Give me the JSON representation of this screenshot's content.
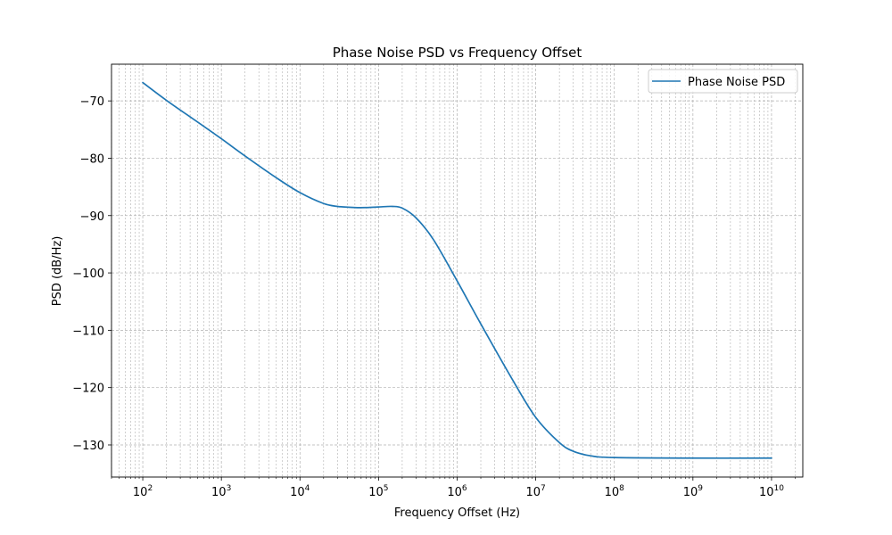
{
  "chart_data": {
    "type": "line",
    "title": "Phase Noise PSD vs Frequency Offset",
    "xlabel": "Frequency Offset (Hz)",
    "ylabel": "PSD (dB/Hz)",
    "xscale": "log",
    "xlim": [
      40,
      25000000000
    ],
    "ylim": [
      -135.6,
      -63.6
    ],
    "grid": true,
    "legend_position": "upper right",
    "x_ticks": [
      {
        "base": "10",
        "exp": "2",
        "value": 100
      },
      {
        "base": "10",
        "exp": "3",
        "value": 1000
      },
      {
        "base": "10",
        "exp": "4",
        "value": 10000
      },
      {
        "base": "10",
        "exp": "5",
        "value": 100000
      },
      {
        "base": "10",
        "exp": "6",
        "value": 1000000
      },
      {
        "base": "10",
        "exp": "7",
        "value": 10000000
      },
      {
        "base": "10",
        "exp": "8",
        "value": 100000000
      },
      {
        "base": "10",
        "exp": "9",
        "value": 1000000000
      },
      {
        "base": "10",
        "exp": "10",
        "value": 10000000000
      }
    ],
    "y_ticks": [
      {
        "label": "−70",
        "value": -70
      },
      {
        "label": "−80",
        "value": -80
      },
      {
        "label": "−90",
        "value": -90
      },
      {
        "label": "−100",
        "value": -100
      },
      {
        "label": "−110",
        "value": -110
      },
      {
        "label": "−120",
        "value": -120
      },
      {
        "label": "−130",
        "value": -130
      }
    ],
    "series": [
      {
        "name": "Phase Noise PSD",
        "color": "#1f77b4",
        "x": [
          100,
          200,
          500,
          1000,
          2000,
          5000,
          10000,
          20000,
          30000,
          50000,
          70000,
          100000,
          150000,
          200000,
          300000,
          500000,
          1000000,
          2000000,
          5000000,
          10000000,
          20000000,
          30000000,
          50000000,
          100000000,
          1000000000,
          10000000000
        ],
        "y": [
          -66.8,
          -69.9,
          -73.7,
          -76.6,
          -79.6,
          -83.4,
          -86.0,
          -87.9,
          -88.4,
          -88.6,
          -88.6,
          -88.5,
          -88.4,
          -88.7,
          -90.4,
          -94.2,
          -101.4,
          -108.9,
          -118.5,
          -125.2,
          -129.6,
          -131.1,
          -131.9,
          -132.2,
          -132.3,
          -132.3
        ]
      }
    ]
  }
}
